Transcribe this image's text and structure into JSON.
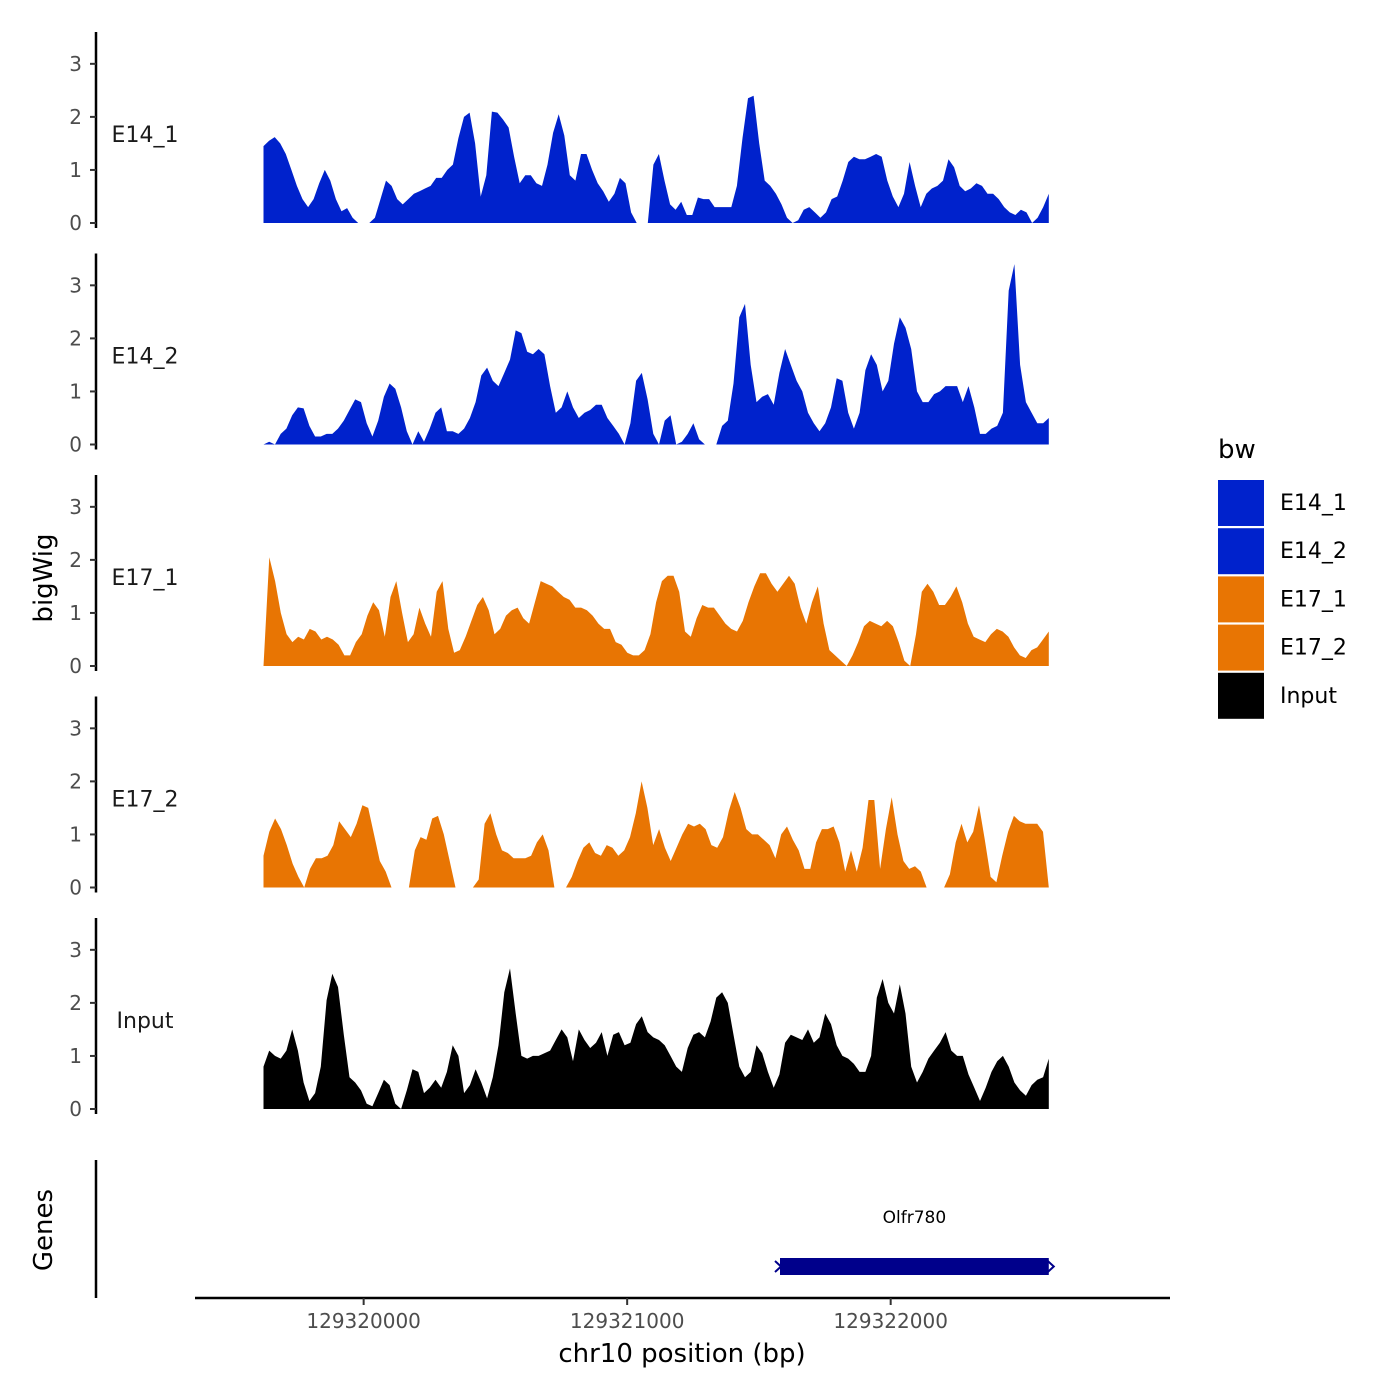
{
  "chart_data": {
    "type": "area",
    "ylabel": "bigWig",
    "xlabel": "chr10 position (bp)",
    "genes_label": "Genes",
    "ylim": [
      0,
      3.6
    ],
    "yticks": [
      "0",
      "1",
      "2",
      "3"
    ],
    "xlim": [
      129319360,
      129323060
    ],
    "x_ticks": [
      {
        "value": 129320000,
        "label": "129320000"
      },
      {
        "value": 129321000,
        "label": "129321000"
      },
      {
        "value": 129322000,
        "label": "129322000"
      }
    ],
    "region": [
      129319620,
      129322600
    ],
    "legend": {
      "title": "bw",
      "items": [
        {
          "label": "E14_1",
          "color": "#0022CC"
        },
        {
          "label": "E14_2",
          "color": "#0022CC"
        },
        {
          "label": "E17_1",
          "color": "#E87503"
        },
        {
          "label": "E17_2",
          "color": "#E87503"
        },
        {
          "label": "Input",
          "color": "#000000"
        }
      ]
    },
    "tracks": [
      {
        "name": "E14_1",
        "color": "#0022CC",
        "values": [
          1.45,
          1.55,
          1.62,
          1.5,
          1.3,
          1.0,
          0.7,
          0.45,
          0.3,
          0.45,
          0.75,
          1.0,
          0.8,
          0.45,
          0.22,
          0.28,
          0.1,
          0.0,
          0.0,
          0.0,
          0.1,
          0.45,
          0.8,
          0.7,
          0.45,
          0.35,
          0.45,
          0.55,
          0.6,
          0.65,
          0.7,
          0.85,
          0.85,
          1.0,
          1.1,
          1.6,
          2.0,
          2.08,
          1.5,
          0.5,
          0.9,
          2.1,
          2.08,
          1.95,
          1.8,
          1.25,
          0.75,
          0.9,
          0.9,
          0.75,
          0.7,
          1.1,
          1.7,
          2.05,
          1.65,
          0.9,
          0.8,
          1.3,
          1.3,
          1.0,
          0.75,
          0.6,
          0.4,
          0.55,
          0.85,
          0.75,
          0.2,
          0.0,
          0.0,
          0.0,
          1.1,
          1.3,
          0.8,
          0.35,
          0.25,
          0.4,
          0.15,
          0.15,
          0.48,
          0.45,
          0.45,
          0.3,
          0.3,
          0.3,
          0.3,
          0.7,
          1.6,
          2.35,
          2.4,
          1.5,
          0.8,
          0.7,
          0.55,
          0.35,
          0.1,
          0.0,
          0.05,
          0.25,
          0.3,
          0.2,
          0.1,
          0.2,
          0.45,
          0.5,
          0.8,
          1.15,
          1.25,
          1.2,
          1.2,
          1.25,
          1.3,
          1.25,
          0.8,
          0.5,
          0.3,
          0.55,
          1.15,
          0.7,
          0.3,
          0.55,
          0.65,
          0.7,
          0.8,
          1.2,
          1.05,
          0.7,
          0.6,
          0.65,
          0.75,
          0.7,
          0.55,
          0.55,
          0.45,
          0.3,
          0.2,
          0.15,
          0.25,
          0.2,
          0.0,
          0.1,
          0.3,
          0.55
        ]
      },
      {
        "name": "E14_2",
        "color": "#0022CC",
        "values": [
          0.0,
          0.05,
          0.0,
          0.2,
          0.3,
          0.55,
          0.7,
          0.68,
          0.35,
          0.15,
          0.15,
          0.2,
          0.2,
          0.3,
          0.45,
          0.65,
          0.85,
          0.8,
          0.4,
          0.15,
          0.45,
          0.9,
          1.15,
          1.05,
          0.7,
          0.25,
          0.0,
          0.25,
          0.05,
          0.3,
          0.6,
          0.7,
          0.25,
          0.25,
          0.2,
          0.3,
          0.5,
          0.8,
          1.3,
          1.45,
          1.2,
          1.1,
          1.35,
          1.6,
          2.15,
          2.1,
          1.75,
          1.7,
          1.8,
          1.7,
          1.1,
          0.6,
          0.7,
          1.0,
          0.7,
          0.5,
          0.6,
          0.65,
          0.75,
          0.75,
          0.5,
          0.35,
          0.2,
          0.0,
          0.4,
          1.2,
          1.35,
          0.85,
          0.2,
          0.0,
          0.45,
          0.55,
          0.0,
          0.05,
          0.2,
          0.4,
          0.1,
          0.0,
          0.0,
          0.0,
          0.35,
          0.45,
          1.15,
          2.4,
          2.65,
          1.5,
          0.8,
          0.9,
          0.95,
          0.75,
          1.35,
          1.8,
          1.5,
          1.2,
          1.0,
          0.6,
          0.4,
          0.25,
          0.4,
          0.7,
          1.25,
          1.2,
          0.6,
          0.3,
          0.6,
          1.4,
          1.7,
          1.5,
          1.0,
          1.2,
          1.9,
          2.4,
          2.2,
          1.8,
          1.0,
          0.8,
          0.8,
          0.95,
          1.0,
          1.1,
          1.1,
          1.1,
          0.8,
          1.1,
          0.7,
          0.2,
          0.2,
          0.3,
          0.35,
          0.6,
          2.9,
          3.4,
          1.5,
          0.8,
          0.6,
          0.4,
          0.4,
          0.5
        ]
      },
      {
        "name": "E17_1",
        "color": "#E87503",
        "values": [
          0.0,
          2.05,
          1.6,
          1.0,
          0.6,
          0.45,
          0.55,
          0.5,
          0.7,
          0.65,
          0.5,
          0.55,
          0.5,
          0.4,
          0.2,
          0.2,
          0.45,
          0.6,
          0.95,
          1.2,
          1.05,
          0.55,
          1.3,
          1.6,
          1.0,
          0.45,
          0.6,
          1.1,
          0.8,
          0.55,
          1.4,
          1.6,
          0.7,
          0.25,
          0.3,
          0.55,
          0.85,
          1.15,
          1.3,
          1.05,
          0.6,
          0.7,
          0.95,
          1.05,
          1.1,
          0.9,
          0.8,
          1.2,
          1.6,
          1.55,
          1.5,
          1.4,
          1.3,
          1.25,
          1.1,
          1.1,
          1.05,
          0.95,
          0.8,
          0.7,
          0.7,
          0.45,
          0.4,
          0.25,
          0.2,
          0.2,
          0.3,
          0.6,
          1.2,
          1.6,
          1.7,
          1.7,
          1.4,
          0.65,
          0.55,
          0.9,
          1.15,
          1.1,
          1.1,
          0.95,
          0.8,
          0.7,
          0.65,
          0.85,
          1.2,
          1.5,
          1.75,
          1.75,
          1.55,
          1.4,
          1.55,
          1.7,
          1.55,
          1.1,
          0.8,
          1.2,
          1.5,
          0.8,
          0.3,
          0.2,
          0.1,
          0.0,
          0.2,
          0.45,
          0.75,
          0.85,
          0.8,
          0.75,
          0.85,
          0.75,
          0.45,
          0.1,
          0.0,
          0.6,
          1.4,
          1.55,
          1.4,
          1.15,
          1.15,
          1.3,
          1.5,
          1.2,
          0.8,
          0.55,
          0.5,
          0.45,
          0.6,
          0.7,
          0.65,
          0.55,
          0.35,
          0.2,
          0.15,
          0.3,
          0.35,
          0.5,
          0.65
        ]
      },
      {
        "name": "E17_2",
        "color": "#E87503",
        "values": [
          0.6,
          1.05,
          1.3,
          1.1,
          0.8,
          0.45,
          0.2,
          0.0,
          0.35,
          0.55,
          0.55,
          0.6,
          0.8,
          1.25,
          1.1,
          0.95,
          1.2,
          1.55,
          1.5,
          1.0,
          0.5,
          0.3,
          0.0,
          0.0,
          0.0,
          0.0,
          0.7,
          0.95,
          0.9,
          1.3,
          1.35,
          1.0,
          0.5,
          0.0,
          0.0,
          0.0,
          0.0,
          0.15,
          1.2,
          1.4,
          1.0,
          0.7,
          0.65,
          0.55,
          0.55,
          0.55,
          0.6,
          0.85,
          1.0,
          0.7,
          0.0,
          0.0,
          0.0,
          0.2,
          0.5,
          0.75,
          0.85,
          0.65,
          0.6,
          0.8,
          0.75,
          0.6,
          0.7,
          0.95,
          1.4,
          2.0,
          1.5,
          0.8,
          1.1,
          0.75,
          0.5,
          0.75,
          1.0,
          1.2,
          1.15,
          1.2,
          1.1,
          0.8,
          0.75,
          0.95,
          1.45,
          1.8,
          1.5,
          1.1,
          1.0,
          1.0,
          0.9,
          0.8,
          0.55,
          1.0,
          1.15,
          0.9,
          0.7,
          0.35,
          0.35,
          0.85,
          1.1,
          1.1,
          1.15,
          0.85,
          0.3,
          0.7,
          0.3,
          0.75,
          1.65,
          1.65,
          0.35,
          1.1,
          1.7,
          1.0,
          0.5,
          0.35,
          0.4,
          0.3,
          0.0,
          0.0,
          0.0,
          0.0,
          0.25,
          0.85,
          1.2,
          0.85,
          1.05,
          1.55,
          0.9,
          0.2,
          0.1,
          0.6,
          1.05,
          1.35,
          1.25,
          1.2,
          1.2,
          1.2,
          1.05,
          0.0
        ]
      },
      {
        "name": "Input",
        "color": "#000000",
        "values": [
          0.8,
          1.1,
          1.0,
          0.95,
          1.1,
          1.5,
          1.1,
          0.5,
          0.15,
          0.3,
          0.8,
          2.05,
          2.55,
          2.3,
          1.4,
          0.6,
          0.5,
          0.35,
          0.1,
          0.05,
          0.3,
          0.55,
          0.45,
          0.1,
          0.0,
          0.35,
          0.75,
          0.7,
          0.3,
          0.4,
          0.55,
          0.4,
          0.7,
          1.2,
          1.0,
          0.3,
          0.45,
          0.75,
          0.5,
          0.2,
          0.6,
          1.2,
          2.2,
          2.65,
          1.8,
          1.0,
          0.95,
          1.0,
          1.0,
          1.05,
          1.1,
          1.3,
          1.5,
          1.35,
          0.9,
          1.5,
          1.3,
          1.15,
          1.25,
          1.45,
          1.0,
          1.4,
          1.45,
          1.2,
          1.25,
          1.6,
          1.75,
          1.45,
          1.35,
          1.3,
          1.2,
          1.0,
          0.8,
          0.7,
          1.15,
          1.4,
          1.45,
          1.35,
          1.65,
          2.1,
          2.2,
          2.0,
          1.4,
          0.8,
          0.6,
          0.7,
          1.2,
          1.05,
          0.7,
          0.4,
          0.65,
          1.25,
          1.4,
          1.35,
          1.3,
          1.5,
          1.25,
          1.35,
          1.8,
          1.6,
          1.2,
          1.0,
          0.95,
          0.85,
          0.7,
          0.7,
          1.0,
          2.1,
          2.45,
          2.0,
          1.8,
          2.35,
          1.8,
          0.8,
          0.5,
          0.7,
          0.95,
          1.1,
          1.25,
          1.45,
          1.1,
          1.0,
          1.0,
          0.65,
          0.4,
          0.15,
          0.4,
          0.7,
          0.9,
          1.0,
          0.8,
          0.5,
          0.35,
          0.25,
          0.45,
          0.55,
          0.6,
          0.95
        ]
      }
    ],
    "genes": [
      {
        "name": "Olfr780",
        "start": 129321580,
        "end": 129322600,
        "strand": "-",
        "color": "#00008B"
      }
    ]
  }
}
